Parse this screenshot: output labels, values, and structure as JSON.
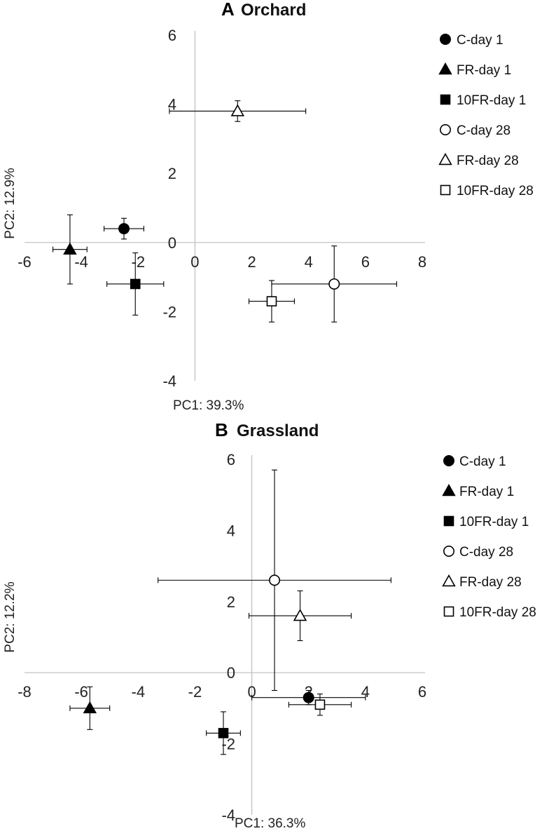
{
  "chart_data": [
    {
      "type": "scatter",
      "panel": "A",
      "title": "Orchard",
      "xlabel": "PC1: 39.3%",
      "ylabel": "PC2: 12.9%",
      "xlim": [
        -6,
        8
      ],
      "ylim": [
        -4,
        6
      ],
      "xticks": [
        "-6",
        "-4",
        "-2",
        "0",
        "2",
        "4",
        "6",
        "8"
      ],
      "yticks": [
        "-4",
        "-2",
        "0",
        "2",
        "4",
        "6"
      ],
      "grid": false,
      "legend_position": "right",
      "series": [
        {
          "name": "C-day 1",
          "marker": "circle",
          "filled": true,
          "points": [
            {
              "x": -2.5,
              "y": 0.4,
              "xerr": 0.7,
              "yerr": 0.3
            }
          ]
        },
        {
          "name": "FR-day 1",
          "marker": "triangle",
          "filled": true,
          "points": [
            {
              "x": -4.4,
              "y": -0.2,
              "xerr": 0.6,
              "yerr": 1.0
            }
          ]
        },
        {
          "name": "10FR-day 1",
          "marker": "square",
          "filled": true,
          "points": [
            {
              "x": -2.1,
              "y": -1.2,
              "xerr": 1.0,
              "yerr": 0.9
            }
          ]
        },
        {
          "name": "C-day 28",
          "marker": "circle",
          "filled": false,
          "points": [
            {
              "x": 4.9,
              "y": -1.2,
              "xerr": 2.2,
              "yerr": 1.1
            }
          ]
        },
        {
          "name": "FR-day 28",
          "marker": "triangle",
          "filled": false,
          "points": [
            {
              "x": 1.5,
              "y": 3.8,
              "xerr": 2.4,
              "yerr": 0.3
            }
          ]
        },
        {
          "name": "10FR-day 28",
          "marker": "square",
          "filled": false,
          "points": [
            {
              "x": 2.7,
              "y": -1.7,
              "xerr": 0.8,
              "yerr": 0.6
            }
          ]
        }
      ]
    },
    {
      "type": "scatter",
      "panel": "B",
      "title": "Grassland",
      "xlabel": "PC1: 36.3%",
      "ylabel": "PC2: 12.2%",
      "xlim": [
        -8,
        6
      ],
      "ylim": [
        -4,
        6
      ],
      "xticks": [
        "-8",
        "-6",
        "-4",
        "-2",
        "0",
        "2",
        "4",
        "6"
      ],
      "yticks": [
        "-4",
        "-2",
        "0",
        "2",
        "4",
        "6"
      ],
      "grid": false,
      "legend_position": "right",
      "series": [
        {
          "name": "C-day 1",
          "marker": "circle",
          "filled": true,
          "points": [
            {
              "x": 2.0,
              "y": -0.7,
              "xerr": 2.0,
              "yerr": 0.2
            }
          ]
        },
        {
          "name": "FR-day 1",
          "marker": "triangle",
          "filled": true,
          "points": [
            {
              "x": -5.7,
              "y": -1.0,
              "xerr": 0.7,
              "yerr": 0.6
            }
          ]
        },
        {
          "name": "10FR-day 1",
          "marker": "square",
          "filled": true,
          "points": [
            {
              "x": -1.0,
              "y": -1.7,
              "xerr": 0.6,
              "yerr": 0.6
            }
          ]
        },
        {
          "name": "C-day 28",
          "marker": "circle",
          "filled": false,
          "points": [
            {
              "x": 0.8,
              "y": 2.6,
              "xerr": 4.1,
              "yerr": 3.1
            }
          ]
        },
        {
          "name": "FR-day 28",
          "marker": "triangle",
          "filled": false,
          "points": [
            {
              "x": 1.7,
              "y": 1.6,
              "xerr": 1.8,
              "yerr": 0.7
            }
          ]
        },
        {
          "name": "10FR-day 28",
          "marker": "square",
          "filled": false,
          "points": [
            {
              "x": 2.4,
              "y": -0.9,
              "xerr": 1.1,
              "yerr": 0.3
            }
          ]
        }
      ]
    }
  ]
}
